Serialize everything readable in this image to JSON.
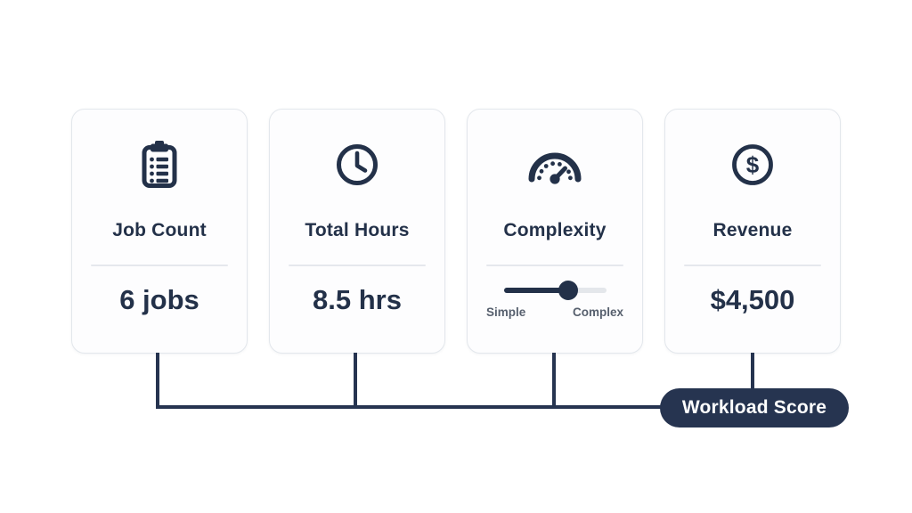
{
  "diagram": {
    "cards": [
      {
        "icon": "clipboard-list-icon",
        "title": "Job Count",
        "value": "6 jobs"
      },
      {
        "icon": "clock-icon",
        "title": "Total Hours",
        "value": "8.5 hrs"
      },
      {
        "icon": "gauge-icon",
        "title": "Complexity",
        "slider": {
          "left_label": "Simple",
          "right_label": "Complex",
          "position_pct": 63
        }
      },
      {
        "icon": "dollar-circle-icon",
        "title": "Revenue",
        "value": "$4,500"
      }
    ],
    "result_badge": {
      "label": "Workload Score"
    },
    "colors": {
      "navy_text": "#233149",
      "connector": "#263450",
      "pill_background": "#263450",
      "pill_text": "#ffffff",
      "card_border": "#e3e7ec",
      "divider": "#e5e8ed",
      "slider_track_gray": "#e4e7eb",
      "slider_label_gray": "#57606e",
      "background": "#ffffff"
    }
  }
}
